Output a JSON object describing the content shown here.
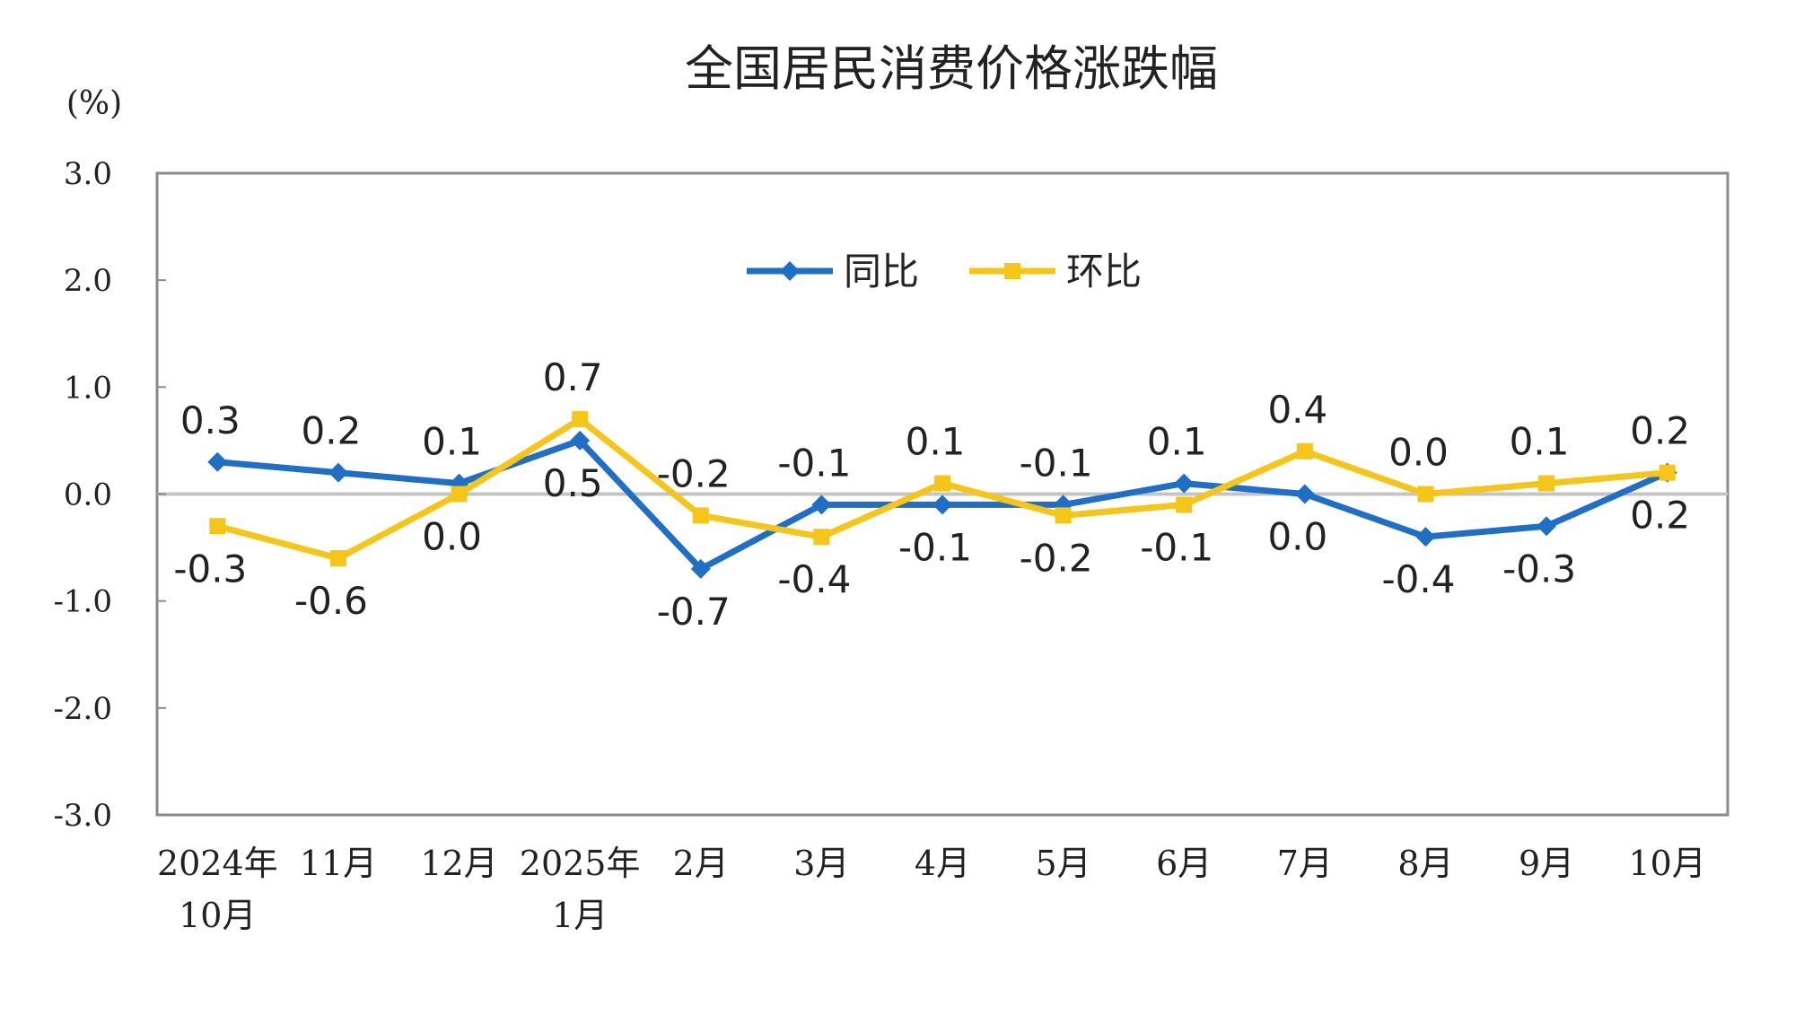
{
  "chart_data": {
    "type": "line",
    "title": "全国居民消费价格涨跌幅",
    "unit_label": "(%)",
    "ylim": [
      -3.0,
      3.0
    ],
    "yticks": [
      "3.0",
      "2.0",
      "1.0",
      "0.0",
      "-1.0",
      "-2.0",
      "-3.0"
    ],
    "ytick_values": [
      3,
      2,
      1,
      0,
      -1,
      -2,
      -3
    ],
    "categories": [
      [
        "2024年",
        "10月"
      ],
      [
        "11月"
      ],
      [
        "12月"
      ],
      [
        "2025年",
        "1月"
      ],
      [
        "2月"
      ],
      [
        "3月"
      ],
      [
        "4月"
      ],
      [
        "5月"
      ],
      [
        "6月"
      ],
      [
        "7月"
      ],
      [
        "8月"
      ],
      [
        "9月"
      ],
      [
        "10月"
      ]
    ],
    "legend_position": "top-center",
    "series": [
      {
        "name": "同比",
        "color": "#1F6FC6",
        "marker": "diamond",
        "values": [
          0.3,
          0.2,
          0.1,
          0.5,
          -0.7,
          -0.1,
          -0.1,
          -0.1,
          0.1,
          0.0,
          -0.4,
          -0.3,
          0.2
        ],
        "labels": [
          "0.3",
          "0.2",
          "0.1",
          "0.5",
          "-0.7",
          "-0.1",
          "-0.1",
          "-0.1",
          "0.1",
          "0.0",
          "-0.4",
          "-0.3",
          "0.2"
        ]
      },
      {
        "name": "环比",
        "color": "#F5C518",
        "marker": "square",
        "values": [
          -0.3,
          -0.6,
          0.0,
          0.7,
          -0.2,
          -0.4,
          0.1,
          -0.2,
          -0.1,
          0.4,
          0.0,
          0.1,
          0.2
        ],
        "labels": [
          "-0.3",
          "-0.6",
          "0.0",
          "0.7",
          "-0.2",
          "-0.4",
          "0.1",
          "-0.2",
          "-0.1",
          "0.4",
          "0.0",
          "0.1",
          "0.2"
        ]
      }
    ]
  }
}
